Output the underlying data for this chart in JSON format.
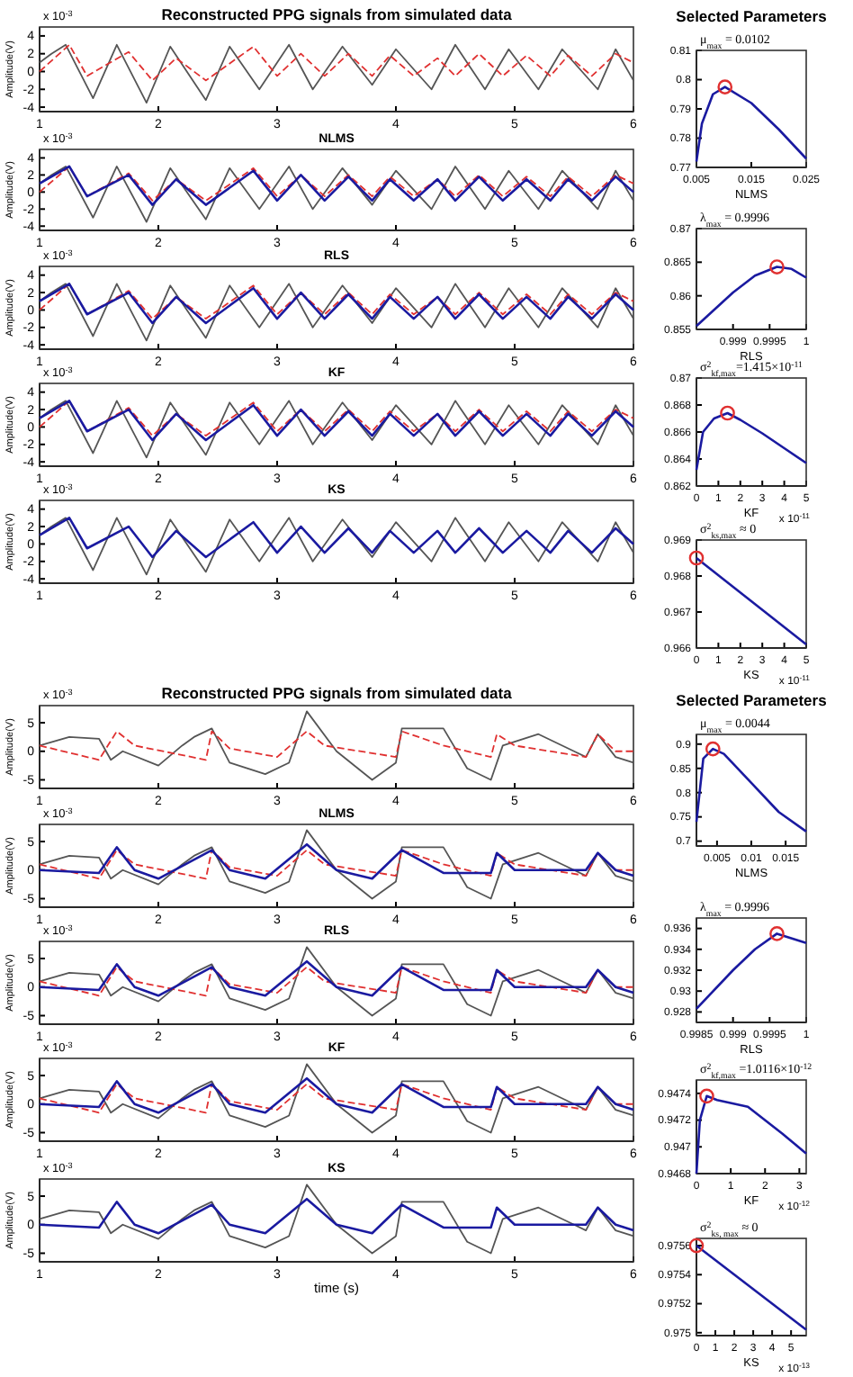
{
  "chart_data": [
    {
      "type": "line",
      "title": "Reconstructed PPG signals from simulated data",
      "ylabel": "Amplitude(V)",
      "annotations": [
        "x 10$^{-3}$"
      ],
      "xlim": [
        1,
        6
      ],
      "xticks": [
        1,
        2,
        3,
        4,
        5,
        6
      ],
      "ylim": [
        -4.5,
        5
      ],
      "yticks": [
        -4,
        -2,
        0,
        2,
        4
      ],
      "series": [
        {
          "color": "#555555",
          "x": [
            1,
            1.1,
            1.22,
            1.45,
            1.65,
            1.9,
            2.1,
            2.4,
            2.6,
            2.85,
            3.1,
            3.3,
            3.55,
            3.8,
            4.0,
            4.3,
            4.5,
            4.75,
            4.95,
            5.2,
            5.4,
            5.7,
            5.85,
            6
          ],
          "values": [
            1,
            2,
            3,
            -3,
            3,
            -3.5,
            2.8,
            -3.2,
            2.8,
            -2,
            3,
            -2,
            2.8,
            -1.5,
            2.5,
            -2,
            3,
            -2,
            2.5,
            -2,
            2.5,
            -2,
            2.5,
            -1
          ]
        },
        {
          "color": "#e03030",
          "line_style": "dashed",
          "x": [
            1,
            1.25,
            1.4,
            1.75,
            1.95,
            2.15,
            2.4,
            2.8,
            3.0,
            3.2,
            3.4,
            3.6,
            3.8,
            3.95,
            4.15,
            4.35,
            4.5,
            4.7,
            4.9,
            5.1,
            5.3,
            5.45,
            5.65,
            5.85,
            6
          ],
          "values": [
            0,
            3,
            -0.5,
            2.2,
            -1,
            1.5,
            -1,
            2.8,
            -0.5,
            2,
            -0.5,
            2,
            -0.5,
            1.8,
            -0.5,
            1.5,
            -0.5,
            2,
            -0.5,
            1.8,
            -0.5,
            1.8,
            -0.5,
            2,
            1
          ]
        }
      ]
    },
    {
      "type": "line",
      "title": "Selected Parameters",
      "xlabel": "NLMS",
      "annotations": [
        "μ$_{max}$ = 0.0102"
      ],
      "xlim": [
        0.005,
        0.025
      ],
      "xticks": [
        0.005,
        0.015,
        0.025
      ],
      "ylim": [
        0.77,
        0.81
      ],
      "yticks": [
        0.77,
        0.78,
        0.79,
        0.8,
        0.81
      ],
      "series": [
        {
          "color": "#1a1aa0",
          "x": [
            0.005,
            0.006,
            0.008,
            0.0102,
            0.015,
            0.02,
            0.025
          ],
          "values": [
            0.772,
            0.785,
            0.795,
            0.7975,
            0.792,
            0.783,
            0.773
          ]
        },
        {
          "type": "scatter",
          "marker": "circle",
          "color": "#e03030",
          "x": [
            0.0102
          ],
          "values": [
            0.7975
          ]
        }
      ]
    },
    {
      "type": "line",
      "title": "NLMS",
      "ylabel": "Amplitude(V)",
      "annotations": [
        "x 10$^{-3}$"
      ],
      "xlim": [
        1,
        6
      ],
      "xticks": [
        1,
        2,
        3,
        4,
        5,
        6
      ],
      "ylim": [
        -4.5,
        5
      ],
      "yticks": [
        -4,
        -2,
        0,
        2,
        4
      ],
      "series": [
        {
          "color": "#555555",
          "x": [
            1,
            1.1,
            1.22,
            1.45,
            1.65,
            1.9,
            2.1,
            2.4,
            2.6,
            2.85,
            3.1,
            3.3,
            3.55,
            3.8,
            4.0,
            4.3,
            4.5,
            4.75,
            4.95,
            5.2,
            5.4,
            5.7,
            5.85,
            6
          ],
          "values": [
            1,
            2,
            3,
            -3,
            3,
            -3.5,
            2.8,
            -3.2,
            2.8,
            -2,
            3,
            -2,
            2.8,
            -1.5,
            2.5,
            -2,
            3,
            -2,
            2.5,
            -2,
            2.5,
            -2,
            2.5,
            -1
          ]
        },
        {
          "color": "#e03030",
          "line_style": "dashed",
          "x": [
            1,
            1.25,
            1.4,
            1.75,
            1.95,
            2.15,
            2.4,
            2.8,
            3.0,
            3.2,
            3.4,
            3.6,
            3.8,
            3.95,
            4.15,
            4.35,
            4.5,
            4.7,
            4.9,
            5.1,
            5.3,
            5.45,
            5.65,
            5.85,
            6
          ],
          "values": [
            0,
            3,
            -0.5,
            2.2,
            -1,
            1.5,
            -1,
            2.8,
            -0.5,
            2,
            -0.5,
            2,
            -0.5,
            1.8,
            -0.5,
            1.5,
            -0.5,
            2,
            -0.5,
            1.8,
            -0.5,
            1.8,
            -0.5,
            2,
            1
          ]
        },
        {
          "color": "#1a1aa0",
          "x": [
            1,
            1.25,
            1.4,
            1.75,
            1.95,
            2.15,
            2.4,
            2.8,
            3.0,
            3.2,
            3.4,
            3.6,
            3.8,
            3.95,
            4.15,
            4.35,
            4.5,
            4.7,
            4.9,
            5.1,
            5.3,
            5.45,
            5.65,
            5.85,
            6
          ],
          "values": [
            1,
            3,
            -0.5,
            2,
            -1.5,
            1.5,
            -1.5,
            2.5,
            -1,
            2,
            -1,
            1.8,
            -1,
            1.5,
            -1,
            1.5,
            -1,
            1.8,
            -1,
            1.5,
            -1,
            1.5,
            -1,
            1.8,
            0
          ]
        }
      ]
    },
    {
      "type": "line",
      "xlabel": "RLS",
      "annotations": [
        "λ$_{max}$ = 0.9996"
      ],
      "xlim": [
        0.9985,
        1
      ],
      "xticks": [
        0.999,
        0.9995,
        1
      ],
      "ylim": [
        0.855,
        0.87
      ],
      "yticks": [
        0.855,
        0.86,
        0.865,
        0.87
      ],
      "series": [
        {
          "color": "#1a1aa0",
          "x": [
            0.9985,
            0.999,
            0.9993,
            0.9996,
            0.9998,
            1
          ],
          "values": [
            0.8555,
            0.8605,
            0.863,
            0.8643,
            0.864,
            0.8627
          ]
        },
        {
          "type": "scatter",
          "marker": "circle",
          "color": "#e03030",
          "x": [
            0.9996
          ],
          "values": [
            0.8643
          ]
        }
      ]
    },
    {
      "type": "line",
      "title": "RLS",
      "ylabel": "Amplitude(V)",
      "annotations": [
        "x 10$^{-3}$"
      ],
      "xlim": [
        1,
        6
      ],
      "xticks": [
        1,
        2,
        3,
        4,
        5,
        6
      ],
      "ylim": [
        -4.5,
        5
      ],
      "yticks": [
        -4,
        -2,
        0,
        2,
        4
      ],
      "series": [
        {
          "color": "#555555",
          "x": [
            1,
            1.1,
            1.22,
            1.45,
            1.65,
            1.9,
            2.1,
            2.4,
            2.6,
            2.85,
            3.1,
            3.3,
            3.55,
            3.8,
            4.0,
            4.3,
            4.5,
            4.75,
            4.95,
            5.2,
            5.4,
            5.7,
            5.85,
            6
          ],
          "values": [
            1,
            2,
            3,
            -3,
            3,
            -3.5,
            2.8,
            -3.2,
            2.8,
            -2,
            3,
            -2,
            2.8,
            -1.5,
            2.5,
            -2,
            3,
            -2,
            2.5,
            -2,
            2.5,
            -2,
            2.5,
            -1
          ]
        },
        {
          "color": "#e03030",
          "line_style": "dashed",
          "x": [
            1,
            1.25,
            1.4,
            1.75,
            1.95,
            2.15,
            2.4,
            2.8,
            3.0,
            3.2,
            3.4,
            3.6,
            3.8,
            3.95,
            4.15,
            4.35,
            4.5,
            4.7,
            4.9,
            5.1,
            5.3,
            5.45,
            5.65,
            5.85,
            6
          ],
          "values": [
            0,
            3,
            -0.5,
            2.2,
            -1,
            1.5,
            -1,
            2.8,
            -0.5,
            2,
            -0.5,
            2,
            -0.5,
            1.8,
            -0.5,
            1.5,
            -0.5,
            2,
            -0.5,
            1.8,
            -0.5,
            1.8,
            -0.5,
            2,
            1
          ]
        },
        {
          "color": "#1a1aa0",
          "x": [
            1,
            1.25,
            1.4,
            1.75,
            1.95,
            2.15,
            2.4,
            2.8,
            3.0,
            3.2,
            3.4,
            3.6,
            3.8,
            3.95,
            4.15,
            4.35,
            4.5,
            4.7,
            4.9,
            5.1,
            5.3,
            5.45,
            5.65,
            5.85,
            6
          ],
          "values": [
            1,
            3,
            -0.5,
            2,
            -1.5,
            1.5,
            -1.5,
            2.5,
            -1,
            2,
            -1,
            1.8,
            -1,
            1.5,
            -1,
            1.5,
            -1,
            1.8,
            -1,
            1.5,
            -1,
            1.5,
            -1,
            1.8,
            0
          ]
        }
      ]
    },
    {
      "type": "line",
      "xlabel": "KF",
      "annotations": [
        "σ$^{2}$$_{kf,max}$=1.415×10$^{-11}$",
        "x 10$^{-11}$"
      ],
      "xlim": [
        0,
        5
      ],
      "xticks": [
        0,
        1,
        2,
        3,
        4,
        5
      ],
      "ylim": [
        0.862,
        0.87
      ],
      "yticks": [
        0.862,
        0.864,
        0.866,
        0.868,
        0.87
      ],
      "series": [
        {
          "color": "#1a1aa0",
          "x": [
            0,
            0.3,
            0.8,
            1.415,
            2,
            3,
            4,
            5
          ],
          "values": [
            0.8632,
            0.866,
            0.867,
            0.8674,
            0.8669,
            0.8659,
            0.8648,
            0.8637
          ]
        },
        {
          "type": "scatter",
          "marker": "circle",
          "color": "#e03030",
          "x": [
            1.415
          ],
          "values": [
            0.8674
          ]
        }
      ]
    },
    {
      "type": "line",
      "title": "KF",
      "ylabel": "Amplitude(V)",
      "annotations": [
        "x 10$^{-3}$"
      ],
      "xlim": [
        1,
        6
      ],
      "xticks": [
        1,
        2,
        3,
        4,
        5,
        6
      ],
      "ylim": [
        -4.5,
        5
      ],
      "yticks": [
        -4,
        -2,
        0,
        2,
        4
      ],
      "series": [
        {
          "color": "#555555",
          "x": [
            1,
            1.1,
            1.22,
            1.45,
            1.65,
            1.9,
            2.1,
            2.4,
            2.6,
            2.85,
            3.1,
            3.3,
            3.55,
            3.8,
            4.0,
            4.3,
            4.5,
            4.75,
            4.95,
            5.2,
            5.4,
            5.7,
            5.85,
            6
          ],
          "values": [
            1,
            2,
            3,
            -3,
            3,
            -3.5,
            2.8,
            -3.2,
            2.8,
            -2,
            3,
            -2,
            2.8,
            -1.5,
            2.5,
            -2,
            3,
            -2,
            2.5,
            -2,
            2.5,
            -2,
            2.5,
            -1
          ]
        },
        {
          "color": "#e03030",
          "line_style": "dashed",
          "x": [
            1,
            1.25,
            1.4,
            1.75,
            1.95,
            2.15,
            2.4,
            2.8,
            3.0,
            3.2,
            3.4,
            3.6,
            3.8,
            3.95,
            4.15,
            4.35,
            4.5,
            4.7,
            4.9,
            5.1,
            5.3,
            5.45,
            5.65,
            5.85,
            6
          ],
          "values": [
            0,
            3,
            -0.5,
            2.2,
            -1,
            1.5,
            -1,
            2.8,
            -0.5,
            2,
            -0.5,
            2,
            -0.5,
            1.8,
            -0.5,
            1.5,
            -0.5,
            2,
            -0.5,
            1.8,
            -0.5,
            1.8,
            -0.5,
            2,
            1
          ]
        },
        {
          "color": "#1a1aa0",
          "x": [
            1,
            1.25,
            1.4,
            1.75,
            1.95,
            2.15,
            2.4,
            2.8,
            3.0,
            3.2,
            3.4,
            3.6,
            3.8,
            3.95,
            4.15,
            4.35,
            4.5,
            4.7,
            4.9,
            5.1,
            5.3,
            5.45,
            5.65,
            5.85,
            6
          ],
          "values": [
            1,
            3,
            -0.5,
            2,
            -1.5,
            1.5,
            -1.5,
            2.5,
            -1,
            2,
            -1,
            1.8,
            -1,
            1.5,
            -1,
            1.5,
            -1,
            1.8,
            -1,
            1.5,
            -1,
            1.5,
            -1,
            1.8,
            0
          ]
        }
      ]
    },
    {
      "type": "line",
      "xlabel": "KS",
      "annotations": [
        "σ$^{2}$$_{ks,max}$ ≈ 0",
        "x 10$^{-11}$"
      ],
      "xlim": [
        0,
        5
      ],
      "xticks": [
        0,
        1,
        2,
        3,
        4,
        5
      ],
      "ylim": [
        0.966,
        0.969
      ],
      "yticks": [
        0.966,
        0.967,
        0.968,
        0.969
      ],
      "series": [
        {
          "color": "#1a1aa0",
          "x": [
            0,
            5
          ],
          "values": [
            0.9685,
            0.9661
          ]
        },
        {
          "type": "scatter",
          "marker": "circle",
          "color": "#e03030",
          "x": [
            0
          ],
          "values": [
            0.9685
          ]
        }
      ]
    },
    {
      "type": "line",
      "title": "KS",
      "ylabel": "Amplitude(V)",
      "annotations": [
        "x 10$^{-3}$"
      ],
      "xlim": [
        1,
        6
      ],
      "xticks": [
        1,
        2,
        3,
        4,
        5,
        6
      ],
      "ylim": [
        -4.5,
        5
      ],
      "yticks": [
        -4,
        -2,
        0,
        2,
        4
      ],
      "series": [
        {
          "color": "#555555",
          "x": [
            1,
            1.1,
            1.22,
            1.45,
            1.65,
            1.9,
            2.1,
            2.4,
            2.6,
            2.85,
            3.1,
            3.3,
            3.55,
            3.8,
            4.0,
            4.3,
            4.5,
            4.75,
            4.95,
            5.2,
            5.4,
            5.7,
            5.85,
            6
          ],
          "values": [
            1,
            2,
            3,
            -3,
            3,
            -3.5,
            2.8,
            -3.2,
            2.8,
            -2,
            3,
            -2,
            2.8,
            -1.5,
            2.5,
            -2,
            3,
            -2,
            2.5,
            -2,
            2.5,
            -2,
            2.5,
            -1
          ]
        },
        {
          "color": "#1a1aa0",
          "x": [
            1,
            1.25,
            1.4,
            1.75,
            1.95,
            2.15,
            2.4,
            2.8,
            3.0,
            3.2,
            3.4,
            3.6,
            3.8,
            3.95,
            4.15,
            4.35,
            4.5,
            4.7,
            4.9,
            5.1,
            5.3,
            5.45,
            5.65,
            5.85,
            6
          ],
          "values": [
            1,
            3,
            -0.5,
            2,
            -1.5,
            1.5,
            -1.5,
            2.5,
            -1,
            2,
            -1,
            1.8,
            -1,
            1.5,
            -1,
            1.5,
            -1,
            1.8,
            -1,
            1.5,
            -1,
            1.5,
            -1,
            1.8,
            0
          ]
        }
      ]
    },
    {
      "type": "line",
      "title": "Reconstructed PPG signals from simulated data",
      "ylabel": "Amplitude(V)",
      "annotations": [
        "x 10$^{-3}$"
      ],
      "xlim": [
        1,
        6
      ],
      "xticks": [
        1,
        2,
        3,
        4,
        5,
        6
      ],
      "ylim": [
        -6.5,
        8
      ],
      "yticks": [
        -5,
        0,
        5
      ],
      "series": [
        {
          "color": "#555555",
          "x": [
            1,
            1.25,
            1.5,
            1.6,
            1.7,
            2.0,
            2.2,
            2.3,
            2.45,
            2.6,
            2.9,
            3.1,
            3.25,
            3.5,
            3.8,
            4.0,
            4.05,
            4.4,
            4.6,
            4.8,
            4.9,
            5.2,
            5.5,
            5.6,
            5.7,
            5.85,
            6
          ],
          "values": [
            1,
            2.5,
            2.2,
            -1.5,
            0,
            -2.5,
            1,
            2.5,
            4,
            -2,
            -4,
            -2,
            7,
            0,
            -5,
            -2,
            4,
            4,
            -3,
            -5,
            1,
            3,
            0,
            -1,
            3,
            -1,
            -2
          ]
        },
        {
          "color": "#e03030",
          "line_style": "dashed",
          "x": [
            1,
            1.5,
            1.65,
            1.8,
            2.4,
            2.45,
            2.6,
            3,
            3.25,
            3.4,
            4,
            4.05,
            4.4,
            4.8,
            4.85,
            5,
            5.6,
            5.7,
            5.85,
            6
          ],
          "values": [
            1,
            -1.5,
            3.5,
            1,
            -1.5,
            3.5,
            0.5,
            -1,
            3.5,
            1,
            -1,
            3.5,
            1,
            -1,
            3,
            1,
            -1,
            3,
            0,
            0
          ]
        }
      ]
    },
    {
      "type": "line",
      "title": "Selected Parameters",
      "xlabel": "NLMS",
      "annotations": [
        "μ$_{max}$ = 0.0044"
      ],
      "xlim": [
        0.002,
        0.018
      ],
      "xticks": [
        0.005,
        0.01,
        0.015
      ],
      "ylim": [
        0.69,
        0.92
      ],
      "yticks": [
        0.7,
        0.75,
        0.8,
        0.85,
        0.9
      ],
      "series": [
        {
          "color": "#1a1aa0",
          "x": [
            0.002,
            0.003,
            0.0044,
            0.006,
            0.01,
            0.014,
            0.018
          ],
          "values": [
            0.74,
            0.87,
            0.89,
            0.88,
            0.82,
            0.76,
            0.72
          ]
        },
        {
          "type": "scatter",
          "marker": "circle",
          "color": "#e03030",
          "x": [
            0.0044
          ],
          "values": [
            0.89
          ]
        }
      ]
    },
    {
      "type": "line",
      "title": "NLMS",
      "ylabel": "Amplitude(V)",
      "annotations": [
        "x 10$^{-3}$"
      ],
      "xlim": [
        1,
        6
      ],
      "xticks": [
        1,
        2,
        3,
        4,
        5,
        6
      ],
      "ylim": [
        -6.5,
        8
      ],
      "yticks": [
        -5,
        0,
        5
      ],
      "series": [
        {
          "color": "#555555",
          "x": [
            1,
            1.25,
            1.5,
            1.6,
            1.7,
            2.0,
            2.2,
            2.3,
            2.45,
            2.6,
            2.9,
            3.1,
            3.25,
            3.5,
            3.8,
            4.0,
            4.05,
            4.4,
            4.6,
            4.8,
            4.9,
            5.2,
            5.5,
            5.6,
            5.7,
            5.85,
            6
          ],
          "values": [
            1,
            2.5,
            2.2,
            -1.5,
            0,
            -2.5,
            1,
            2.5,
            4,
            -2,
            -4,
            -2,
            7,
            0,
            -5,
            -2,
            4,
            4,
            -3,
            -5,
            1,
            3,
            0,
            -1,
            3,
            -1,
            -2
          ]
        },
        {
          "color": "#e03030",
          "line_style": "dashed",
          "x": [
            1,
            1.5,
            1.65,
            1.8,
            2.4,
            2.45,
            2.6,
            3,
            3.25,
            3.4,
            4,
            4.05,
            4.4,
            4.8,
            4.85,
            5,
            5.6,
            5.7,
            5.85,
            6
          ],
          "values": [
            1,
            -1.5,
            3.5,
            1,
            -1.5,
            3.5,
            0.5,
            -1,
            3.5,
            1,
            -1,
            3.5,
            1,
            -1,
            3,
            1,
            -1,
            3,
            0,
            0
          ]
        },
        {
          "color": "#1a1aa0",
          "x": [
            1,
            1.5,
            1.65,
            1.8,
            2,
            2.45,
            2.6,
            2.9,
            3.25,
            3.5,
            3.8,
            4.05,
            4.4,
            4.8,
            4.85,
            5,
            5.6,
            5.7,
            5.85,
            6
          ],
          "values": [
            0,
            -0.5,
            4,
            0,
            -1.5,
            3.5,
            0,
            -1.5,
            4.5,
            0,
            -1.5,
            3.5,
            -0.5,
            -0.5,
            3,
            0,
            0,
            3,
            0,
            -1
          ]
        }
      ]
    },
    {
      "type": "line",
      "xlabel": "RLS",
      "annotations": [
        "λ$_{max}$ = 0.9996"
      ],
      "xlim": [
        0.9985,
        1
      ],
      "xticks": [
        0.9985,
        0.999,
        0.9995,
        1
      ],
      "ylim": [
        0.927,
        0.937
      ],
      "yticks": [
        0.928,
        0.93,
        0.932,
        0.934,
        0.936
      ],
      "series": [
        {
          "color": "#1a1aa0",
          "x": [
            0.9985,
            0.999,
            0.9993,
            0.9996,
            1
          ],
          "values": [
            0.9283,
            0.932,
            0.934,
            0.9355,
            0.9346
          ]
        },
        {
          "type": "scatter",
          "marker": "circle",
          "color": "#e03030",
          "x": [
            0.9996
          ],
          "values": [
            0.9355
          ]
        }
      ]
    },
    {
      "type": "line",
      "title": "RLS",
      "ylabel": "Amplitude(V)",
      "annotations": [
        "x 10$^{-3}$"
      ],
      "xlim": [
        1,
        6
      ],
      "xticks": [
        1,
        2,
        3,
        4,
        5,
        6
      ],
      "ylim": [
        -6.5,
        8
      ],
      "yticks": [
        -5,
        0,
        5
      ],
      "series": [
        {
          "color": "#555555",
          "x": [
            1,
            1.25,
            1.5,
            1.6,
            1.7,
            2.0,
            2.2,
            2.3,
            2.45,
            2.6,
            2.9,
            3.1,
            3.25,
            3.5,
            3.8,
            4.0,
            4.05,
            4.4,
            4.6,
            4.8,
            4.9,
            5.2,
            5.5,
            5.6,
            5.7,
            5.85,
            6
          ],
          "values": [
            1,
            2.5,
            2.2,
            -1.5,
            0,
            -2.5,
            1,
            2.5,
            4,
            -2,
            -4,
            -2,
            7,
            0,
            -5,
            -2,
            4,
            4,
            -3,
            -5,
            1,
            3,
            0,
            -1,
            3,
            -1,
            -2
          ]
        },
        {
          "color": "#e03030",
          "line_style": "dashed",
          "x": [
            1,
            1.5,
            1.65,
            1.8,
            2.4,
            2.45,
            2.6,
            3,
            3.25,
            3.4,
            4,
            4.05,
            4.4,
            4.8,
            4.85,
            5,
            5.6,
            5.7,
            5.85,
            6
          ],
          "values": [
            1,
            -1.5,
            3.5,
            1,
            -1.5,
            3.5,
            0.5,
            -1,
            3.5,
            1,
            -1,
            3.5,
            1,
            -1,
            3,
            1,
            -1,
            3,
            0,
            0
          ]
        },
        {
          "color": "#1a1aa0",
          "x": [
            1,
            1.5,
            1.65,
            1.8,
            2,
            2.45,
            2.6,
            2.9,
            3.25,
            3.5,
            3.8,
            4.05,
            4.4,
            4.8,
            4.85,
            5,
            5.6,
            5.7,
            5.85,
            6
          ],
          "values": [
            0,
            -0.5,
            4,
            0,
            -1.5,
            3.5,
            0,
            -1.5,
            4.5,
            0,
            -1.5,
            3.5,
            -0.5,
            -0.5,
            3,
            0,
            0,
            3,
            0,
            -1
          ]
        }
      ]
    },
    {
      "type": "line",
      "xlabel": "KF",
      "annotations": [
        "σ$^{2}$$_{kf,max}$ =1.0116×10$^{-12}$",
        "x 10$^{-12}$"
      ],
      "xlim": [
        0,
        3.2
      ],
      "xticks": [
        0,
        1,
        2,
        3
      ],
      "ylim": [
        0.9468,
        0.9475
      ],
      "yticks": [
        0.9468,
        0.947,
        0.9472,
        0.9474
      ],
      "series": [
        {
          "color": "#1a1aa0",
          "x": [
            0,
            0.1,
            0.3,
            0.6,
            1.5,
            2.5,
            3.2
          ],
          "values": [
            0.9468,
            0.9472,
            0.94738,
            0.94735,
            0.9473,
            0.9471,
            0.94695
          ]
        },
        {
          "type": "scatter",
          "marker": "circle",
          "color": "#e03030",
          "x": [
            0.3
          ],
          "values": [
            0.94738
          ]
        }
      ]
    },
    {
      "type": "line",
      "title": "KF",
      "ylabel": "Amplitude(V)",
      "annotations": [
        "x 10$^{-3}$"
      ],
      "xlim": [
        1,
        6
      ],
      "xticks": [
        1,
        2,
        3,
        4,
        5,
        6
      ],
      "ylim": [
        -6.5,
        8
      ],
      "yticks": [
        -5,
        0,
        5
      ],
      "series": [
        {
          "color": "#555555",
          "x": [
            1,
            1.25,
            1.5,
            1.6,
            1.7,
            2.0,
            2.2,
            2.3,
            2.45,
            2.6,
            2.9,
            3.1,
            3.25,
            3.5,
            3.8,
            4.0,
            4.05,
            4.4,
            4.6,
            4.8,
            4.9,
            5.2,
            5.5,
            5.6,
            5.7,
            5.85,
            6
          ],
          "values": [
            1,
            2.5,
            2.2,
            -1.5,
            0,
            -2.5,
            1,
            2.5,
            4,
            -2,
            -4,
            -2,
            7,
            0,
            -5,
            -2,
            4,
            4,
            -3,
            -5,
            1,
            3,
            0,
            -1,
            3,
            -1,
            -2
          ]
        },
        {
          "color": "#e03030",
          "line_style": "dashed",
          "x": [
            1,
            1.5,
            1.65,
            1.8,
            2.4,
            2.45,
            2.6,
            3,
            3.25,
            3.4,
            4,
            4.05,
            4.4,
            4.8,
            4.85,
            5,
            5.6,
            5.7,
            5.85,
            6
          ],
          "values": [
            1,
            -1.5,
            3.5,
            1,
            -1.5,
            3.5,
            0.5,
            -1,
            3.5,
            1,
            -1,
            3.5,
            1,
            -1,
            3,
            1,
            -1,
            3,
            0,
            0
          ]
        },
        {
          "color": "#1a1aa0",
          "x": [
            1,
            1.5,
            1.65,
            1.8,
            2,
            2.45,
            2.6,
            2.9,
            3.25,
            3.5,
            3.8,
            4.05,
            4.4,
            4.8,
            4.85,
            5,
            5.6,
            5.7,
            5.85,
            6
          ],
          "values": [
            0,
            -0.5,
            4,
            0,
            -1.5,
            3.5,
            0,
            -1.5,
            4.5,
            0,
            -1.5,
            3.5,
            -0.5,
            -0.5,
            3,
            0,
            0,
            3,
            0,
            -1
          ]
        }
      ]
    },
    {
      "type": "line",
      "xlabel": "KS",
      "annotations": [
        "σ$^{2}$$_{ks, max}$ ≈ 0",
        "x 10$^{-13}$"
      ],
      "xlim": [
        0,
        5.8
      ],
      "xticks": [
        0,
        1,
        2,
        3,
        4,
        5
      ],
      "ylim": [
        0.97498,
        0.97565
      ],
      "yticks": [
        0.975,
        0.9752,
        0.9754,
        0.9756
      ],
      "series": [
        {
          "color": "#1a1aa0",
          "x": [
            0,
            5.8
          ],
          "values": [
            0.9756,
            0.97502
          ]
        },
        {
          "type": "scatter",
          "marker": "circle",
          "color": "#e03030",
          "x": [
            0
          ],
          "values": [
            0.9756
          ]
        }
      ]
    },
    {
      "type": "line",
      "title": "KS",
      "xlabel": "time (s)",
      "ylabel": "Amplitude(V)",
      "annotations": [
        "x 10$^{-3}$"
      ],
      "xlim": [
        1,
        6
      ],
      "xticks": [
        1,
        2,
        3,
        4,
        5,
        6
      ],
      "ylim": [
        -6.5,
        8
      ],
      "yticks": [
        -5,
        0,
        5
      ],
      "series": [
        {
          "color": "#555555",
          "x": [
            1,
            1.25,
            1.5,
            1.6,
            1.7,
            2.0,
            2.2,
            2.3,
            2.45,
            2.6,
            2.9,
            3.1,
            3.25,
            3.5,
            3.8,
            4.0,
            4.05,
            4.4,
            4.6,
            4.8,
            4.9,
            5.2,
            5.5,
            5.6,
            5.7,
            5.85,
            6
          ],
          "values": [
            1,
            2.5,
            2.2,
            -1.5,
            0,
            -2.5,
            1,
            2.5,
            4,
            -2,
            -4,
            -2,
            7,
            0,
            -5,
            -2,
            4,
            4,
            -3,
            -5,
            1,
            3,
            0,
            -1,
            3,
            -1,
            -2
          ]
        },
        {
          "color": "#1a1aa0",
          "x": [
            1,
            1.5,
            1.65,
            1.8,
            2,
            2.45,
            2.6,
            2.9,
            3.25,
            3.5,
            3.8,
            4.05,
            4.4,
            4.8,
            4.85,
            5,
            5.6,
            5.7,
            5.85,
            6
          ],
          "values": [
            0,
            -0.5,
            4,
            0,
            -1.5,
            3.5,
            0,
            -1.5,
            4.5,
            0,
            -1.5,
            3.5,
            -0.5,
            -0.5,
            3,
            0,
            0,
            3,
            0,
            -1
          ]
        }
      ]
    }
  ]
}
